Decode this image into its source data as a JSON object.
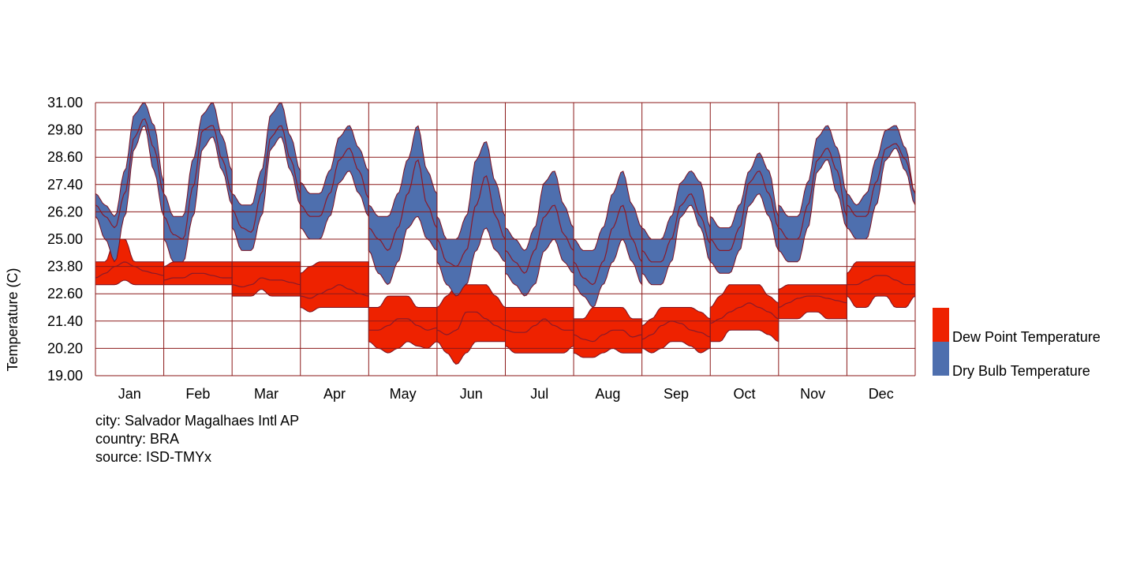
{
  "chart_data": {
    "type": "area",
    "ylabel": "Temperature (C)",
    "ylim": [
      19.0,
      31.0
    ],
    "yticks": [
      "31.00",
      "29.80",
      "28.60",
      "27.40",
      "26.20",
      "25.00",
      "23.80",
      "22.60",
      "21.40",
      "20.20",
      "19.00"
    ],
    "categories": [
      "Jan",
      "Feb",
      "Mar",
      "Apr",
      "May",
      "Jun",
      "Jul",
      "Aug",
      "Sep",
      "Oct",
      "Nov",
      "Dec"
    ],
    "grid": true,
    "legend_position": "right",
    "series": [
      {
        "name": "Dew Point Temperature",
        "color": "#ee2200",
        "daily_profile_by_month": {
          "min": [
            [
              23,
              23,
              23,
              23.2,
              23,
              23,
              23,
              23
            ],
            [
              23,
              23,
              23,
              23,
              23,
              23,
              23,
              23
            ],
            [
              22.5,
              22.5,
              22.5,
              22.8,
              22.5,
              22.5,
              22.5,
              22.5
            ],
            [
              22,
              21.8,
              22,
              22,
              22,
              22,
              22,
              22
            ],
            [
              20.5,
              20.2,
              20,
              20.2,
              20.5,
              20.3,
              20.2,
              20.5
            ],
            [
              20.5,
              20,
              19.5,
              20,
              20.5,
              20.5,
              20.5,
              20.5
            ],
            [
              20.3,
              20,
              20,
              20,
              20,
              20,
              20,
              20.3
            ],
            [
              20,
              19.8,
              19.8,
              20,
              20.2,
              20,
              20,
              20
            ],
            [
              20.2,
              20,
              20.2,
              20.5,
              20.5,
              20.3,
              20,
              20.2
            ],
            [
              20.5,
              20.5,
              21,
              21,
              21,
              21,
              20.8,
              20.5
            ],
            [
              21.5,
              21.5,
              21.5,
              21.8,
              21.8,
              21.5,
              21.5,
              21.5
            ],
            [
              22.5,
              22,
              22,
              22.5,
              22.5,
              22,
              22,
              22.5
            ]
          ],
          "mean": [
            [
              23.3,
              23.5,
              23.8,
              24,
              23.8,
              23.6,
              23.5,
              23.4
            ],
            [
              23.2,
              23.3,
              23.3,
              23.5,
              23.5,
              23.4,
              23.3,
              23.3
            ],
            [
              23,
              22.9,
              23,
              23.3,
              23.2,
              23.2,
              23.1,
              23
            ],
            [
              22.5,
              22.4,
              22.6,
              22.8,
              23,
              22.8,
              22.6,
              22.5
            ],
            [
              21,
              21,
              21.2,
              21.5,
              21.5,
              21.2,
              21,
              21.1
            ],
            [
              21,
              20.8,
              21,
              21.8,
              21.8,
              21.5,
              21.2,
              21
            ],
            [
              21,
              20.9,
              20.9,
              21.2,
              21.5,
              21.2,
              21,
              21
            ],
            [
              20.8,
              20.6,
              20.5,
              20.8,
              21,
              21,
              20.7,
              20.8
            ],
            [
              20.6,
              20.8,
              21.2,
              21.4,
              21.3,
              21,
              20.9,
              20.7
            ],
            [
              21.3,
              21.5,
              21.8,
              22,
              22.2,
              22,
              21.8,
              21.5
            ],
            [
              22,
              22.2,
              22.4,
              22.5,
              22.5,
              22.4,
              22.3,
              22.2
            ],
            [
              23,
              23,
              23.2,
              23.4,
              23.4,
              23.2,
              23,
              23
            ]
          ],
          "max": [
            [
              24,
              24,
              25,
              25,
              24,
              24,
              24,
              24
            ],
            [
              23.8,
              24,
              24,
              24,
              24,
              24,
              24,
              24
            ],
            [
              24,
              24,
              24,
              24,
              24,
              24,
              24,
              24
            ],
            [
              23.5,
              23.8,
              24,
              24,
              24,
              24,
              24,
              24
            ],
            [
              22,
              22,
              22.5,
              22.5,
              22.5,
              22,
              22,
              22
            ],
            [
              22,
              22.5,
              23,
              23,
              23,
              23,
              22.5,
              22
            ],
            [
              22,
              22,
              22,
              22,
              22,
              22,
              22,
              22
            ],
            [
              21.5,
              21.5,
              22,
              22,
              22,
              22,
              21.5,
              21.5
            ],
            [
              21.2,
              21.5,
              22,
              22,
              22,
              22,
              21.8,
              21.5
            ],
            [
              22,
              22.5,
              23,
              23,
              23,
              23,
              22.5,
              22.2
            ],
            [
              22.8,
              23,
              23,
              23,
              23,
              23,
              23,
              23
            ],
            [
              23.5,
              24,
              24,
              24,
              24,
              24,
              24,
              24
            ]
          ]
        }
      },
      {
        "name": "Dry Bulb Temperature",
        "color": "#4e6fae",
        "daily_profile_by_month": {
          "min": [
            [
              26,
              25,
              24,
              26,
              29,
              30,
              28,
              26
            ],
            [
              25,
              24,
              24,
              26,
              29,
              29.5,
              28,
              26.5
            ],
            [
              25.5,
              24.5,
              24.5,
              26,
              29,
              29.5,
              28,
              26.5
            ],
            [
              25.5,
              25,
              25,
              26,
              27.5,
              28,
              27,
              26
            ],
            [
              24.5,
              23.5,
              23,
              24,
              25.5,
              26,
              25,
              24.5
            ],
            [
              24,
              23,
              22.5,
              23,
              24.5,
              25.5,
              24.5,
              24
            ],
            [
              23.5,
              23,
              22.5,
              23,
              24.5,
              25,
              24,
              23.5
            ],
            [
              23,
              22.5,
              22,
              23,
              24,
              25,
              24,
              23
            ],
            [
              23.5,
              23,
              23,
              24,
              26,
              26.5,
              25.5,
              24
            ],
            [
              24,
              23.5,
              23.5,
              24.5,
              26.5,
              27,
              26,
              24.5
            ],
            [
              24.5,
              24,
              24,
              25.5,
              28,
              28.5,
              27,
              25.5
            ],
            [
              25.5,
              25,
              25,
              26.5,
              28.5,
              29,
              28,
              26.5
            ]
          ],
          "mean": [
            [
              26.5,
              26,
              25.5,
              27,
              29.5,
              30.3,
              29,
              27
            ],
            [
              26,
              25.2,
              25,
              27.3,
              29.8,
              30,
              28.5,
              27
            ],
            [
              26.3,
              25.5,
              25.3,
              27,
              29.5,
              30,
              28.5,
              27
            ],
            [
              26.5,
              26,
              26,
              27,
              28.5,
              29,
              28,
              26.8
            ],
            [
              25.5,
              25,
              24.5,
              25.5,
              27,
              28.5,
              26.5,
              25.5
            ],
            [
              25,
              24,
              23.8,
              24.5,
              26.5,
              27.8,
              26,
              25
            ],
            [
              24.5,
              24,
              23.5,
              24.5,
              26,
              26.5,
              25.2,
              24.5
            ],
            [
              24,
              23.3,
              23,
              24,
              25.5,
              26.5,
              25,
              24
            ],
            [
              24.5,
              24,
              24,
              25,
              26.5,
              27,
              26,
              24.8
            ],
            [
              25,
              24.5,
              24.5,
              25.5,
              27.5,
              28,
              27,
              25.5
            ],
            [
              25.5,
              25,
              25,
              26.5,
              28.5,
              29,
              28,
              26
            ],
            [
              26.5,
              26,
              26,
              27.5,
              29,
              29.2,
              28.5,
              27
            ]
          ],
          "max": [
            [
              27,
              26.5,
              26,
              28,
              30.5,
              31,
              30,
              27.5
            ],
            [
              27,
              26,
              26,
              28.5,
              30.5,
              31,
              29.5,
              28
            ],
            [
              27,
              26.5,
              26.5,
              28,
              30.5,
              31,
              29.5,
              28
            ],
            [
              27.5,
              27,
              27,
              28,
              29.5,
              30,
              29,
              28
            ],
            [
              26.5,
              26,
              26,
              27,
              28.5,
              30,
              28,
              27
            ],
            [
              26,
              25,
              25,
              26,
              28.5,
              29.3,
              27.5,
              26
            ],
            [
              25.5,
              25,
              24.5,
              25.5,
              27.5,
              28,
              26.5,
              25.5
            ],
            [
              25,
              24.5,
              24.5,
              25.5,
              27,
              28,
              26.5,
              25.5
            ],
            [
              25.5,
              25,
              25,
              26,
              27.5,
              28,
              27.5,
              25.5
            ],
            [
              26,
              25.5,
              25.5,
              26.5,
              28,
              28.8,
              28,
              26
            ],
            [
              26.5,
              26,
              26,
              27.5,
              29.5,
              30,
              29,
              27
            ],
            [
              27,
              26.5,
              27,
              28.5,
              29.8,
              30,
              29,
              27
            ]
          ]
        }
      }
    ]
  },
  "meta": {
    "city": "city: Salvador Magalhaes Intl AP",
    "country": "country: BRA",
    "source": "source: ISD-TMYx"
  }
}
